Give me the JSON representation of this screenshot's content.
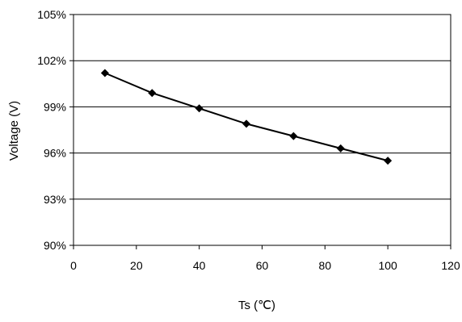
{
  "chart_data": {
    "type": "line",
    "title": "",
    "xlabel": "Ts (℃)",
    "ylabel": "Voltage (V)",
    "xlim": [
      0,
      120
    ],
    "ylim": [
      90,
      105
    ],
    "x_ticks": [
      0,
      20,
      40,
      60,
      80,
      100,
      120
    ],
    "x_tick_labels": [
      "0",
      "20",
      "40",
      "60",
      "80",
      "100",
      "120"
    ],
    "y_ticks": [
      90,
      93,
      96,
      99,
      102,
      105
    ],
    "y_tick_labels": [
      "90%",
      "93%",
      "96%",
      "99%",
      "102%",
      "105%"
    ],
    "grid": "horizontal",
    "legend": "none",
    "series": [
      {
        "x": [
          10,
          25,
          40,
          55,
          70,
          85,
          100
        ],
        "y": [
          101.2,
          99.9,
          98.9,
          97.9,
          97.1,
          96.3,
          95.5
        ],
        "color": "#000000",
        "marker": "diamond"
      }
    ]
  }
}
